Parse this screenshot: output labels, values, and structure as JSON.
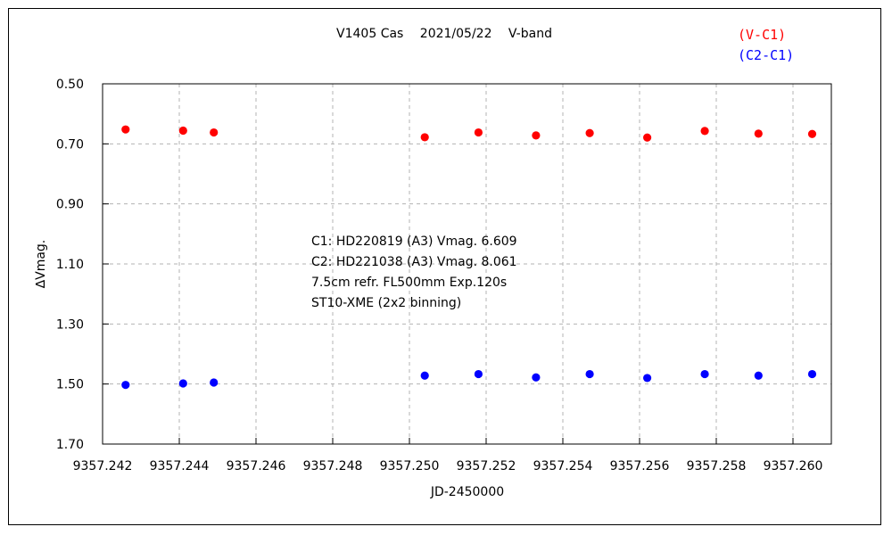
{
  "chart_data": {
    "type": "scatter",
    "title": "V1405 Cas　 2021/05/22　 V-band",
    "xlabel": "JD-2450000",
    "ylabel": "∆Vmag.",
    "xlim": [
      9357.242,
      9357.261
    ],
    "ylim": [
      0.5,
      1.7
    ],
    "y_inverted": true,
    "grid": "dashed",
    "x_ticks": [
      "9357.242",
      "9357.244",
      "9357.246",
      "9357.248",
      "9357.250",
      "9357.252",
      "9357.254",
      "9357.256",
      "9357.258",
      "9357.260"
    ],
    "x_tick_values": [
      9357.242,
      9357.244,
      9357.246,
      9357.248,
      9357.25,
      9357.252,
      9357.254,
      9357.256,
      9357.258,
      9357.26
    ],
    "y_ticks": [
      "0.50",
      "0.70",
      "0.90",
      "1.10",
      "1.30",
      "1.50",
      "1.70"
    ],
    "y_tick_values": [
      0.5,
      0.7,
      0.9,
      1.1,
      1.3,
      1.5,
      1.7
    ],
    "legend_position": "top-right",
    "x": [
      9357.2426,
      9357.2441,
      9357.2449,
      9357.2504,
      9357.2518,
      9357.2533,
      9357.2547,
      9357.2562,
      9357.2577,
      9357.2591,
      9357.2605
    ],
    "series": [
      {
        "name": "(V-C1)",
        "color": "#ff0000",
        "values": [
          0.652,
          0.656,
          0.662,
          0.678,
          0.662,
          0.672,
          0.664,
          0.679,
          0.657,
          0.666,
          0.667
        ]
      },
      {
        "name": "(C2-C1)",
        "color": "#0000ff",
        "values": [
          1.503,
          1.498,
          1.495,
          1.472,
          1.467,
          1.478,
          1.467,
          1.48,
          1.467,
          1.472,
          1.467
        ]
      }
    ],
    "annotations": [
      "C1: HD220819 (A3) Vmag. 6.609",
      "C2: HD221038 (A3) Vmag. 8.061",
      "7.5cm refr. FL500mm  Exp.120s",
      "ST10-XME (2x2 binning)"
    ]
  }
}
